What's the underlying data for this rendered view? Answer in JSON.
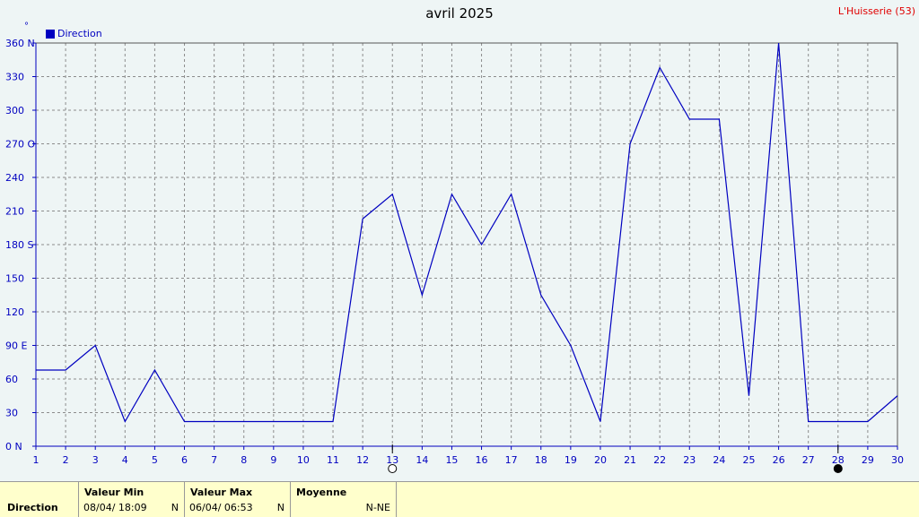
{
  "station": "L'Huisserie (53)",
  "chart_data": {
    "type": "line",
    "title": "avril 2025",
    "unit": "°",
    "legend": [
      "Direction"
    ],
    "x": [
      1,
      2,
      3,
      4,
      5,
      6,
      7,
      8,
      9,
      10,
      11,
      12,
      13,
      14,
      15,
      16,
      17,
      18,
      19,
      20,
      21,
      22,
      23,
      24,
      25,
      26,
      27,
      28,
      29,
      30
    ],
    "series": [
      {
        "name": "Direction",
        "color": "#0000c0",
        "values": [
          68,
          68,
          90,
          22,
          68,
          22,
          22,
          22,
          22,
          22,
          22,
          203,
          225,
          135,
          225,
          180,
          225,
          135,
          90,
          22,
          270,
          338,
          292,
          292,
          45,
          360,
          22,
          22,
          22,
          45
        ]
      }
    ],
    "ylim": [
      0,
      360
    ],
    "yticks": [
      "0 N",
      "30",
      "60",
      "90 E",
      "120",
      "150",
      "180 S",
      "210",
      "240",
      "270 O",
      "300",
      "330",
      "360 N"
    ],
    "xlim": [
      1,
      30
    ],
    "grid": true,
    "moon_markers": [
      {
        "day": 13,
        "phase": "full"
      },
      {
        "day": 28,
        "phase": "new"
      }
    ]
  },
  "footer": {
    "row_label": "Direction",
    "min": {
      "header": "Valeur Min",
      "date": "08/04/  18:09",
      "value": "N"
    },
    "max": {
      "header": "Valeur Max",
      "date": "06/04/  06:53",
      "value": "N"
    },
    "avg": {
      "header": "Moyenne",
      "value": "N-NE"
    }
  }
}
